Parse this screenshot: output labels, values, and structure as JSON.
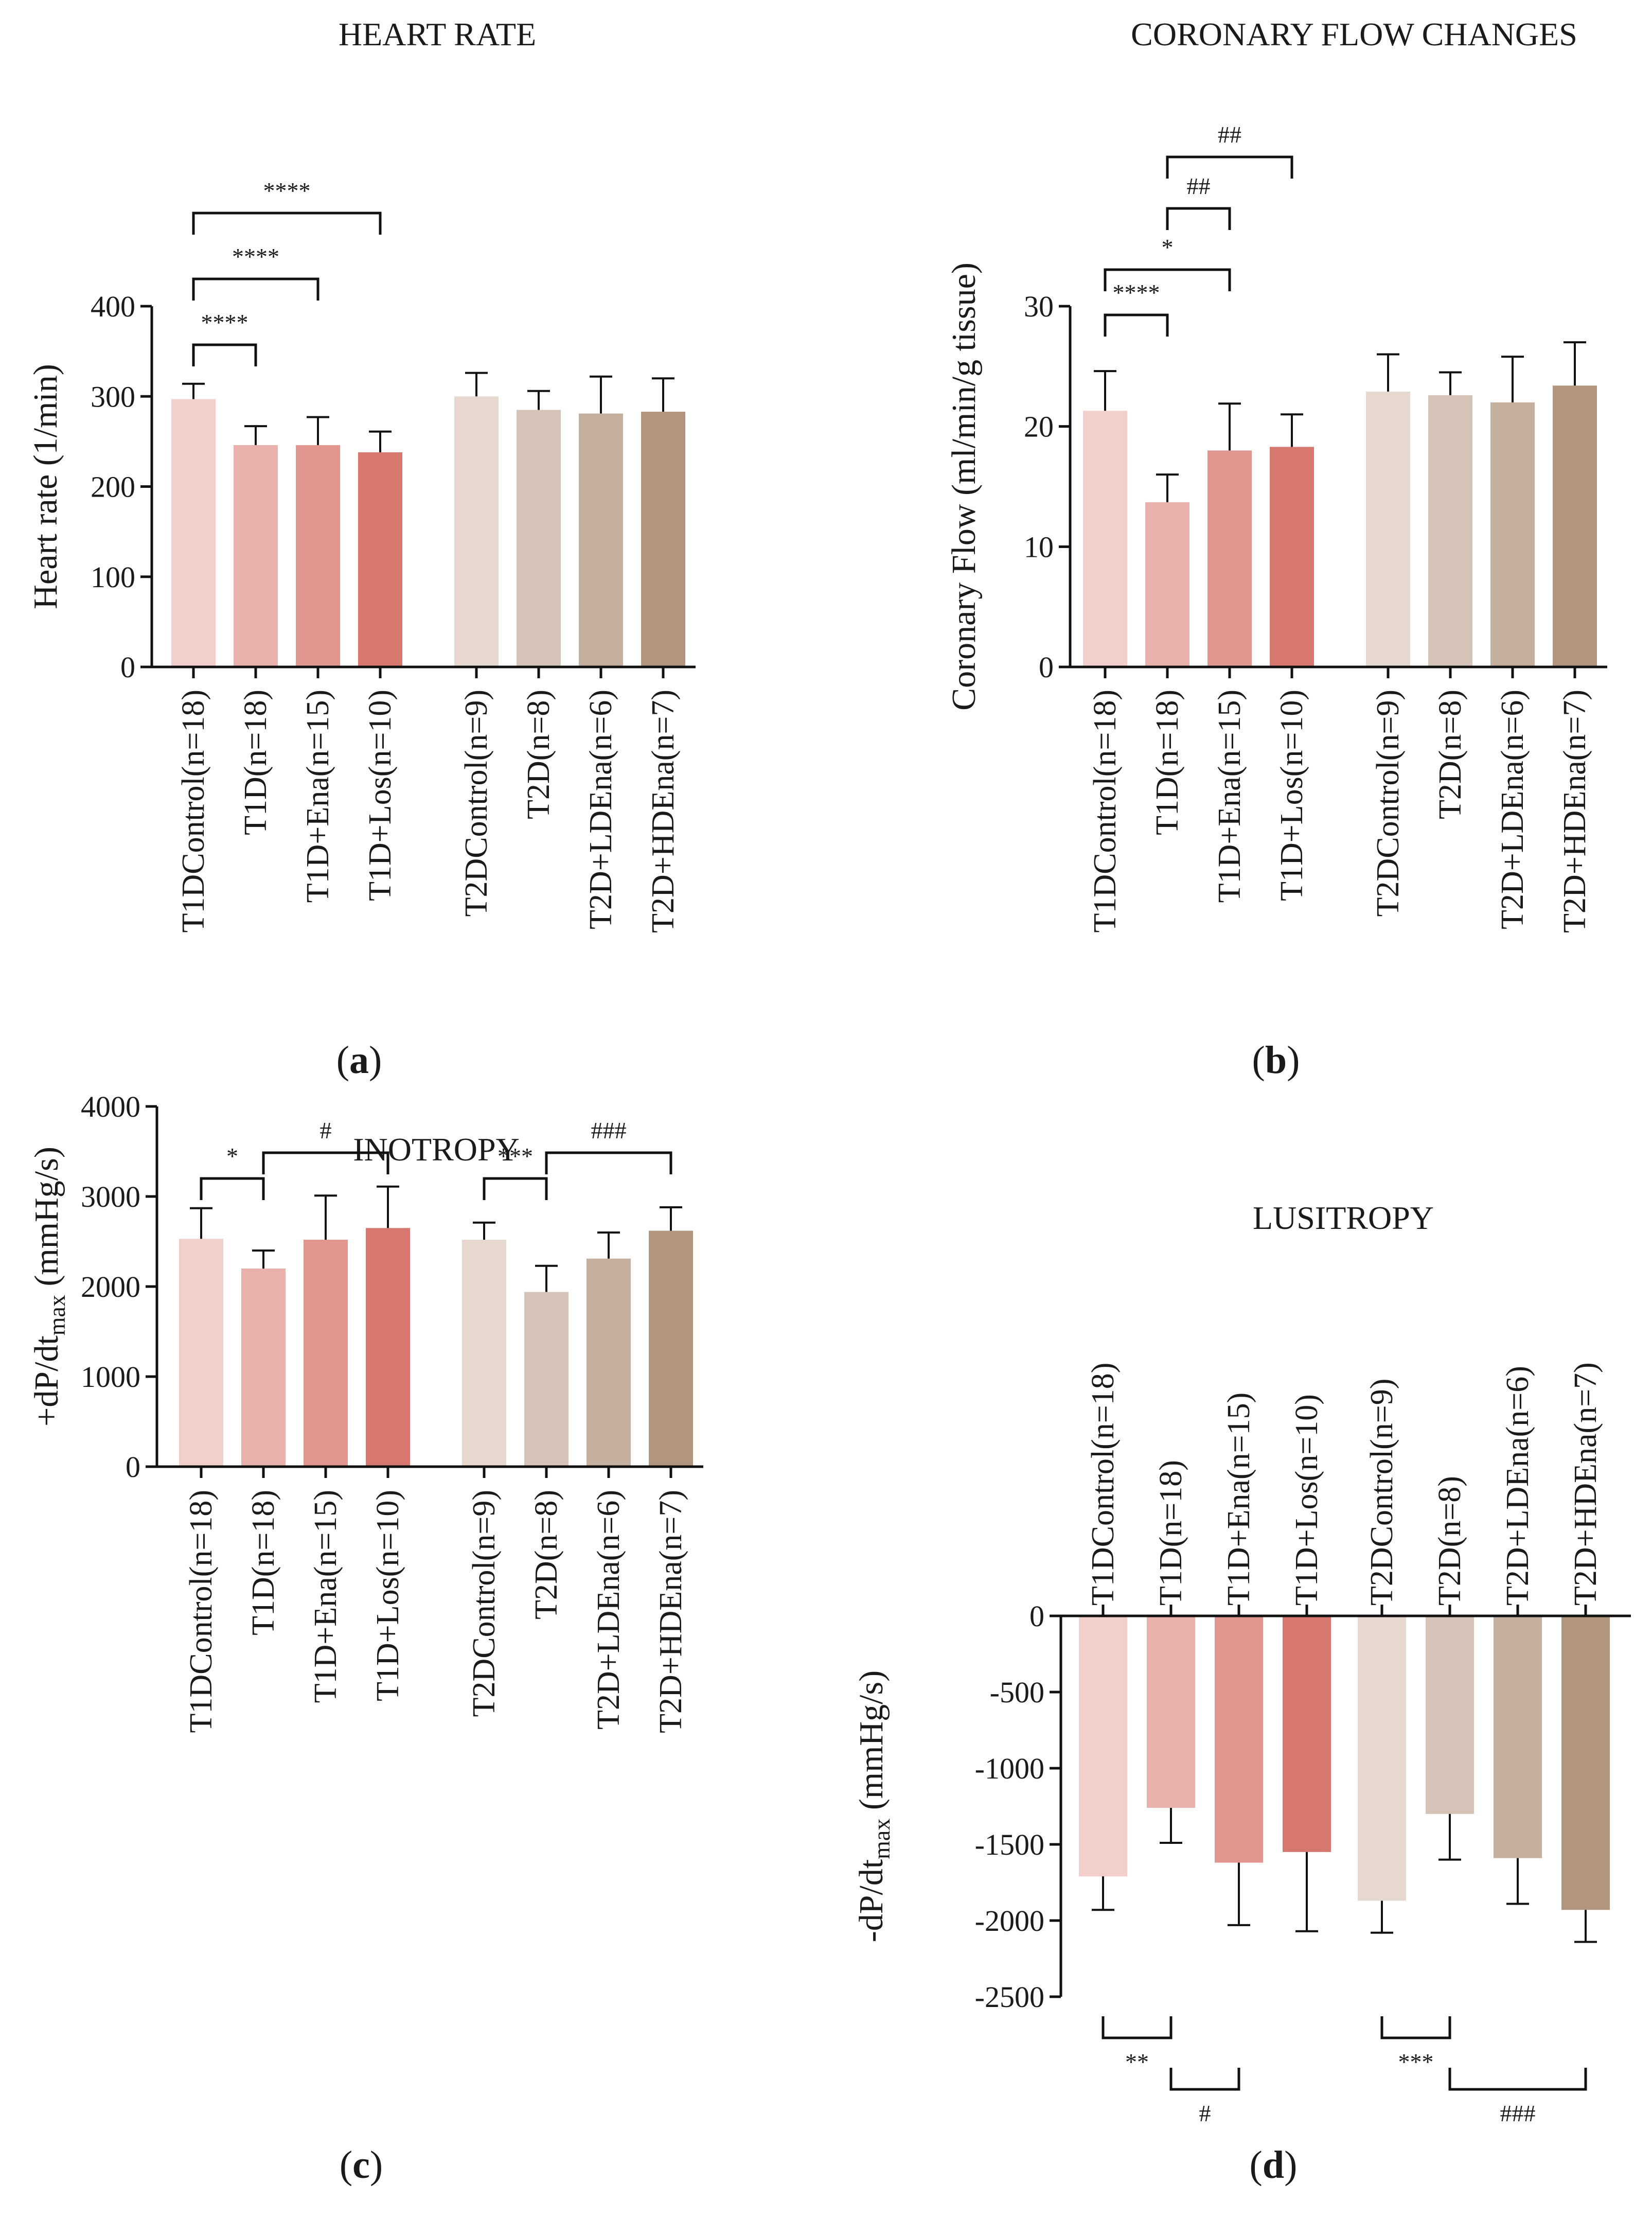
{
  "colors": {
    "T1DControl": "#f2cfcb",
    "T1D": "#e9b1ab",
    "T1DEna": "#e1968f",
    "T1DLos": "#d6786e",
    "T2DControl": "#e6d8cf",
    "T2D": "#d6c3b7",
    "T2DLDEna": "#c5b0a0",
    "T2DHDEna": "#b1957c",
    "axis": "#111111"
  },
  "chart_data": [
    {
      "id": "a",
      "type": "bar",
      "title": "HEART RATE",
      "ylabel": "Heart rate (1/min)",
      "panel_label": "a",
      "ylim": [
        0,
        400
      ],
      "yticks": [
        0,
        100,
        200,
        300,
        400
      ],
      "categories": [
        "T1DControl(n=18)",
        "T1D(n=18)",
        "T1D+Ena(n=15)",
        "T1D+Los(n=10)",
        "T2DControl(n=9)",
        "T2D(n=8)",
        "T2D+LDEna(n=6)",
        "T2D+HDEna(n=7)"
      ],
      "values": [
        297,
        246,
        246,
        238,
        300,
        285,
        281,
        283
      ],
      "errors": [
        17,
        21,
        31,
        23,
        26,
        21,
        41,
        37
      ],
      "significance": [
        {
          "from": 0,
          "to": 1,
          "label": "****"
        },
        {
          "from": 0,
          "to": 2,
          "label": "****"
        },
        {
          "from": 0,
          "to": 3,
          "label": "****"
        }
      ]
    },
    {
      "id": "b",
      "type": "bar",
      "title": "CORONARY FLOW CHANGES",
      "ylabel": "Coronary Flow (ml/min/g tissue)",
      "panel_label": "b",
      "ylim": [
        0,
        30
      ],
      "yticks": [
        0,
        10,
        20,
        30
      ],
      "categories": [
        "T1DControl(n=18)",
        "T1D(n=18)",
        "T1D+Ena(n=15)",
        "T1D+Los(n=10)",
        "T2DControl(n=9)",
        "T2D(n=8)",
        "T2D+LDEna(n=6)",
        "T2D+HDEna(n=7)"
      ],
      "values": [
        21.3,
        13.7,
        18.0,
        18.3,
        22.9,
        22.6,
        22.0,
        23.4
      ],
      "errors": [
        3.3,
        2.3,
        3.9,
        2.7,
        3.1,
        1.9,
        3.8,
        3.6
      ],
      "significance": [
        {
          "from": 0,
          "to": 1,
          "label": "****"
        },
        {
          "from": 0,
          "to": 2,
          "label": "*"
        },
        {
          "from": 1,
          "to": 2,
          "label": "##"
        },
        {
          "from": 1,
          "to": 3,
          "label": "##"
        }
      ]
    },
    {
      "id": "c",
      "type": "bar",
      "title": "INOTROPY",
      "ylabel": "+dP/dt",
      "ylabel_sub": "max",
      "ylabel_unit": " (mmHg/s)",
      "panel_label": "c",
      "ylim": [
        0,
        4000
      ],
      "yticks": [
        0,
        1000,
        2000,
        3000,
        4000
      ],
      "categories": [
        "T1DControl(n=18)",
        "T1D(n=18)",
        "T1D+Ena(n=15)",
        "T1D+Los(n=10)",
        "T2DControl(n=9)",
        "T2D(n=8)",
        "T2D+LDEna(n=6)",
        "T2D+HDEna(n=7)"
      ],
      "values": [
        2530,
        2200,
        2520,
        2650,
        2520,
        1940,
        2310,
        2620
      ],
      "errors": [
        340,
        200,
        490,
        460,
        190,
        290,
        290,
        260
      ],
      "significance": [
        {
          "from": 0,
          "to": 1,
          "label": "*"
        },
        {
          "from": 1,
          "to": 3,
          "label": "#"
        },
        {
          "from": 4,
          "to": 5,
          "label": "***"
        },
        {
          "from": 5,
          "to": 7,
          "label": "###"
        }
      ]
    },
    {
      "id": "d",
      "type": "bar",
      "title": "LUSITROPY",
      "ylabel": "-dP/dt",
      "ylabel_sub": "max",
      "ylabel_unit": " (mmHg/s)",
      "panel_label": "d",
      "ylim": [
        -2500,
        0
      ],
      "yticks": [
        0,
        -500,
        -1000,
        -1500,
        -2000,
        -2500
      ],
      "categories": [
        "T1DControl(n=18)",
        "T1D(n=18)",
        "T1D+Ena(n=15)",
        "T1D+Los(n=10)",
        "T2DControl(n=9)",
        "T2D(n=8)",
        "T2D+LDEna(n=6)",
        "T2D+HDEna(n=7)"
      ],
      "values": [
        -1710,
        -1260,
        -1620,
        -1550,
        -1870,
        -1300,
        -1590,
        -1930
      ],
      "errors": [
        220,
        230,
        410,
        520,
        210,
        300,
        300,
        210
      ],
      "significance": [
        {
          "from": 0,
          "to": 1,
          "label": "**"
        },
        {
          "from": 1,
          "to": 2,
          "label": "#"
        },
        {
          "from": 4,
          "to": 5,
          "label": "***"
        },
        {
          "from": 5,
          "to": 7,
          "label": "###"
        }
      ]
    }
  ]
}
